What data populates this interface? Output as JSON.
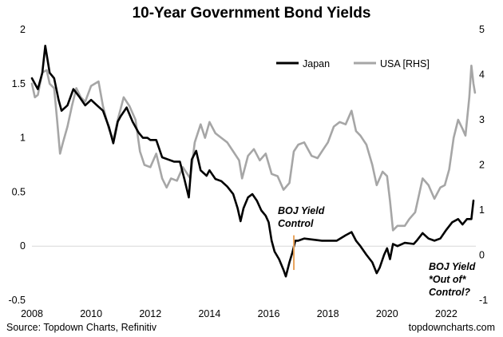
{
  "chart_data": {
    "type": "line",
    "title": "10-Year Government Bond Yields",
    "xlabel": "",
    "ylabel": "",
    "x_ticks": [
      "2008",
      "2010",
      "2012",
      "2014",
      "2016",
      "2018",
      "2020",
      "2022"
    ],
    "xlim": [
      2008,
      2023.0
    ],
    "ylim_left": [
      -0.5,
      2
    ],
    "y_ticks_left": [
      "2",
      "1.5",
      "1",
      "0.5",
      "0",
      "-0.5"
    ],
    "ylim_right": [
      -1,
      5
    ],
    "y_ticks_right": [
      "5",
      "4",
      "3",
      "2",
      "1",
      "0",
      "-1"
    ],
    "legend_position": "top-right",
    "series": [
      {
        "name": "Japan",
        "axis": "left",
        "color": "#000000",
        "points": [
          [
            2008.0,
            1.55
          ],
          [
            2008.2,
            1.45
          ],
          [
            2008.35,
            1.6
          ],
          [
            2008.45,
            1.85
          ],
          [
            2008.6,
            1.6
          ],
          [
            2008.75,
            1.55
          ],
          [
            2008.9,
            1.35
          ],
          [
            2009.0,
            1.25
          ],
          [
            2009.2,
            1.3
          ],
          [
            2009.4,
            1.45
          ],
          [
            2009.6,
            1.38
          ],
          [
            2009.8,
            1.3
          ],
          [
            2010.0,
            1.35
          ],
          [
            2010.2,
            1.3
          ],
          [
            2010.4,
            1.25
          ],
          [
            2010.6,
            1.1
          ],
          [
            2010.75,
            0.95
          ],
          [
            2010.9,
            1.15
          ],
          [
            2011.0,
            1.2
          ],
          [
            2011.2,
            1.28
          ],
          [
            2011.4,
            1.15
          ],
          [
            2011.6,
            1.05
          ],
          [
            2011.75,
            1.0
          ],
          [
            2011.9,
            1.0
          ],
          [
            2012.0,
            0.98
          ],
          [
            2012.2,
            0.98
          ],
          [
            2012.4,
            0.82
          ],
          [
            2012.6,
            0.8
          ],
          [
            2012.8,
            0.78
          ],
          [
            2013.0,
            0.78
          ],
          [
            2013.15,
            0.62
          ],
          [
            2013.3,
            0.45
          ],
          [
            2013.4,
            0.8
          ],
          [
            2013.55,
            0.88
          ],
          [
            2013.7,
            0.7
          ],
          [
            2013.9,
            0.65
          ],
          [
            2014.0,
            0.7
          ],
          [
            2014.2,
            0.62
          ],
          [
            2014.4,
            0.6
          ],
          [
            2014.6,
            0.55
          ],
          [
            2014.8,
            0.48
          ],
          [
            2014.95,
            0.35
          ],
          [
            2015.05,
            0.23
          ],
          [
            2015.15,
            0.35
          ],
          [
            2015.3,
            0.45
          ],
          [
            2015.45,
            0.48
          ],
          [
            2015.6,
            0.42
          ],
          [
            2015.75,
            0.33
          ],
          [
            2015.9,
            0.28
          ],
          [
            2016.0,
            0.22
          ],
          [
            2016.1,
            0.05
          ],
          [
            2016.2,
            -0.05
          ],
          [
            2016.35,
            -0.12
          ],
          [
            2016.5,
            -0.22
          ],
          [
            2016.58,
            -0.28
          ],
          [
            2016.7,
            -0.15
          ],
          [
            2016.8,
            -0.06
          ],
          [
            2016.9,
            0.05
          ],
          [
            2017.0,
            0.05
          ],
          [
            2017.2,
            0.07
          ],
          [
            2017.5,
            0.06
          ],
          [
            2017.8,
            0.05
          ],
          [
            2018.0,
            0.05
          ],
          [
            2018.3,
            0.05
          ],
          [
            2018.6,
            0.1
          ],
          [
            2018.8,
            0.13
          ],
          [
            2018.95,
            0.05
          ],
          [
            2019.1,
            0.0
          ],
          [
            2019.3,
            -0.08
          ],
          [
            2019.5,
            -0.15
          ],
          [
            2019.65,
            -0.25
          ],
          [
            2019.75,
            -0.2
          ],
          [
            2019.9,
            -0.08
          ],
          [
            2020.0,
            -0.02
          ],
          [
            2020.1,
            -0.12
          ],
          [
            2020.2,
            0.02
          ],
          [
            2020.35,
            0.0
          ],
          [
            2020.6,
            0.03
          ],
          [
            2020.9,
            0.02
          ],
          [
            2021.0,
            0.05
          ],
          [
            2021.2,
            0.12
          ],
          [
            2021.4,
            0.07
          ],
          [
            2021.6,
            0.05
          ],
          [
            2021.8,
            0.07
          ],
          [
            2022.0,
            0.15
          ],
          [
            2022.2,
            0.22
          ],
          [
            2022.4,
            0.25
          ],
          [
            2022.55,
            0.2
          ],
          [
            2022.7,
            0.25
          ],
          [
            2022.85,
            0.25
          ],
          [
            2022.92,
            0.42
          ]
        ]
      },
      {
        "name": "USA [RHS]",
        "axis": "right",
        "color": "#a6a6a6",
        "points": [
          [
            2008.0,
            3.8
          ],
          [
            2008.1,
            3.5
          ],
          [
            2008.2,
            3.55
          ],
          [
            2008.35,
            4.05
          ],
          [
            2008.5,
            4.1
          ],
          [
            2008.6,
            3.8
          ],
          [
            2008.75,
            3.7
          ],
          [
            2008.85,
            3.0
          ],
          [
            2008.95,
            2.25
          ],
          [
            2009.05,
            2.5
          ],
          [
            2009.2,
            2.85
          ],
          [
            2009.35,
            3.3
          ],
          [
            2009.5,
            3.7
          ],
          [
            2009.65,
            3.5
          ],
          [
            2009.8,
            3.4
          ],
          [
            2010.0,
            3.75
          ],
          [
            2010.25,
            3.85
          ],
          [
            2010.4,
            3.3
          ],
          [
            2010.6,
            2.8
          ],
          [
            2010.75,
            2.55
          ],
          [
            2010.9,
            3.0
          ],
          [
            2011.1,
            3.5
          ],
          [
            2011.3,
            3.3
          ],
          [
            2011.5,
            3.0
          ],
          [
            2011.65,
            2.3
          ],
          [
            2011.8,
            2.0
          ],
          [
            2012.0,
            1.95
          ],
          [
            2012.2,
            2.25
          ],
          [
            2012.4,
            1.7
          ],
          [
            2012.55,
            1.5
          ],
          [
            2012.7,
            1.7
          ],
          [
            2012.9,
            1.65
          ],
          [
            2013.1,
            1.95
          ],
          [
            2013.35,
            1.7
          ],
          [
            2013.5,
            2.5
          ],
          [
            2013.7,
            2.9
          ],
          [
            2013.85,
            2.6
          ],
          [
            2014.0,
            2.95
          ],
          [
            2014.2,
            2.7
          ],
          [
            2014.4,
            2.6
          ],
          [
            2014.6,
            2.5
          ],
          [
            2014.8,
            2.3
          ],
          [
            2015.0,
            2.1
          ],
          [
            2015.1,
            1.7
          ],
          [
            2015.3,
            2.2
          ],
          [
            2015.5,
            2.35
          ],
          [
            2015.7,
            2.1
          ],
          [
            2015.9,
            2.25
          ],
          [
            2016.1,
            1.8
          ],
          [
            2016.3,
            1.75
          ],
          [
            2016.5,
            1.45
          ],
          [
            2016.7,
            1.6
          ],
          [
            2016.85,
            2.3
          ],
          [
            2017.0,
            2.45
          ],
          [
            2017.2,
            2.5
          ],
          [
            2017.45,
            2.2
          ],
          [
            2017.65,
            2.15
          ],
          [
            2017.85,
            2.35
          ],
          [
            2018.0,
            2.5
          ],
          [
            2018.2,
            2.85
          ],
          [
            2018.4,
            2.95
          ],
          [
            2018.6,
            2.9
          ],
          [
            2018.8,
            3.2
          ],
          [
            2018.95,
            2.75
          ],
          [
            2019.1,
            2.65
          ],
          [
            2019.3,
            2.45
          ],
          [
            2019.5,
            2.0
          ],
          [
            2019.65,
            1.55
          ],
          [
            2019.85,
            1.85
          ],
          [
            2020.0,
            1.75
          ],
          [
            2020.1,
            1.2
          ],
          [
            2020.2,
            0.55
          ],
          [
            2020.35,
            0.65
          ],
          [
            2020.6,
            0.65
          ],
          [
            2020.75,
            0.8
          ],
          [
            2020.95,
            0.95
          ],
          [
            2021.1,
            1.4
          ],
          [
            2021.2,
            1.7
          ],
          [
            2021.4,
            1.55
          ],
          [
            2021.6,
            1.25
          ],
          [
            2021.8,
            1.5
          ],
          [
            2021.95,
            1.55
          ],
          [
            2022.1,
            1.9
          ],
          [
            2022.25,
            2.6
          ],
          [
            2022.4,
            3.0
          ],
          [
            2022.55,
            2.8
          ],
          [
            2022.65,
            2.65
          ],
          [
            2022.78,
            3.5
          ],
          [
            2022.85,
            4.2
          ],
          [
            2022.92,
            3.8
          ],
          [
            2022.97,
            3.6
          ]
        ]
      }
    ],
    "vertical_marker": {
      "x": 2016.85,
      "y_from": -0.22,
      "y_to": 0.1,
      "color": "#e8a35c"
    },
    "annotations": [
      {
        "lines": [
          "BOJ Yield",
          "Control"
        ]
      },
      {
        "lines": [
          "BOJ Yield",
          "*Out of*",
          "Control?"
        ]
      }
    ]
  },
  "footer": {
    "source": "Source: Topdown Charts, Refinitiv",
    "website": "topdowncharts.com"
  }
}
